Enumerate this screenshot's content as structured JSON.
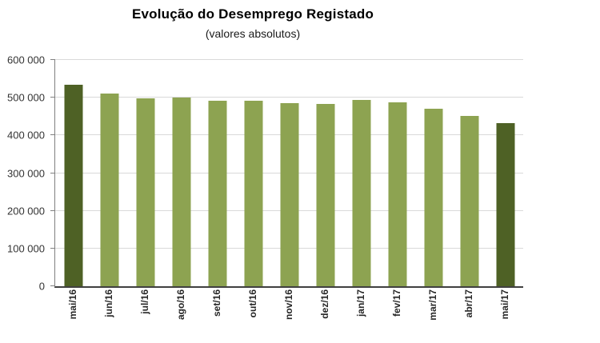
{
  "chart_data": {
    "type": "bar",
    "title": "Evolução do Desemprego Registado",
    "subtitle": "(valores absolutos)",
    "categories": [
      "mai/16",
      "jun/16",
      "jul/16",
      "ago/16",
      "set/16",
      "out/16",
      "nov/16",
      "dez/16",
      "jan/17",
      "fev/17",
      "mar/17",
      "abr/17",
      "mai/17"
    ],
    "values": [
      535000,
      511000,
      498000,
      500000,
      491000,
      491000,
      486000,
      483000,
      495000,
      487000,
      470000,
      452000,
      432000
    ],
    "ylim": [
      0,
      600000
    ],
    "ytick_step": 100000,
    "ytick_labels": [
      "0",
      "100 000",
      "200 000",
      "300 000",
      "400 000",
      "500 000",
      "600 000"
    ],
    "grid": true,
    "legend": "none",
    "bar_color": "#8DA351",
    "highlight_color": "#4E6125",
    "highlight_indices": [
      0,
      12
    ]
  }
}
